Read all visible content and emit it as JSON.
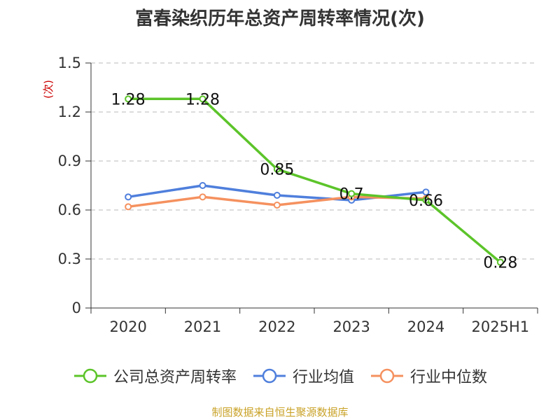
{
  "chart_data": {
    "type": "line",
    "title": "富春染织历年总资产周转率情况(次)",
    "xlabel": "",
    "ylabel": "(次)",
    "categories": [
      "2020",
      "2021",
      "2022",
      "2023",
      "2024",
      "2025H1"
    ],
    "yticks": [
      "0",
      "0.3",
      "0.6",
      "0.9",
      "1.2",
      "1.5"
    ],
    "ylim": [
      0,
      1.5
    ],
    "grid": "dashed horizontal",
    "legend_position": "bottom",
    "series": [
      {
        "name": "公司总资产周转率",
        "color": "#5cc42a",
        "values": [
          1.28,
          1.28,
          0.85,
          0.7,
          0.66,
          0.28
        ],
        "data_labels": [
          "1.28",
          "1.28",
          "0.85",
          "0.7",
          "0.66",
          "0.28"
        ]
      },
      {
        "name": "行业均值",
        "color": "#4f7fdc",
        "values": [
          0.68,
          0.75,
          0.69,
          0.66,
          0.71,
          null
        ]
      },
      {
        "name": "行业中位数",
        "color": "#f5915f",
        "values": [
          0.62,
          0.68,
          0.63,
          0.68,
          0.67,
          null
        ]
      }
    ]
  },
  "colors": {
    "title": "#333333",
    "axis": "#333333",
    "grid": "#c8c8c8",
    "ylabel": "#cc0000",
    "source": "#c9a227"
  },
  "source_note": "制图数据来自恒生聚源数据库"
}
